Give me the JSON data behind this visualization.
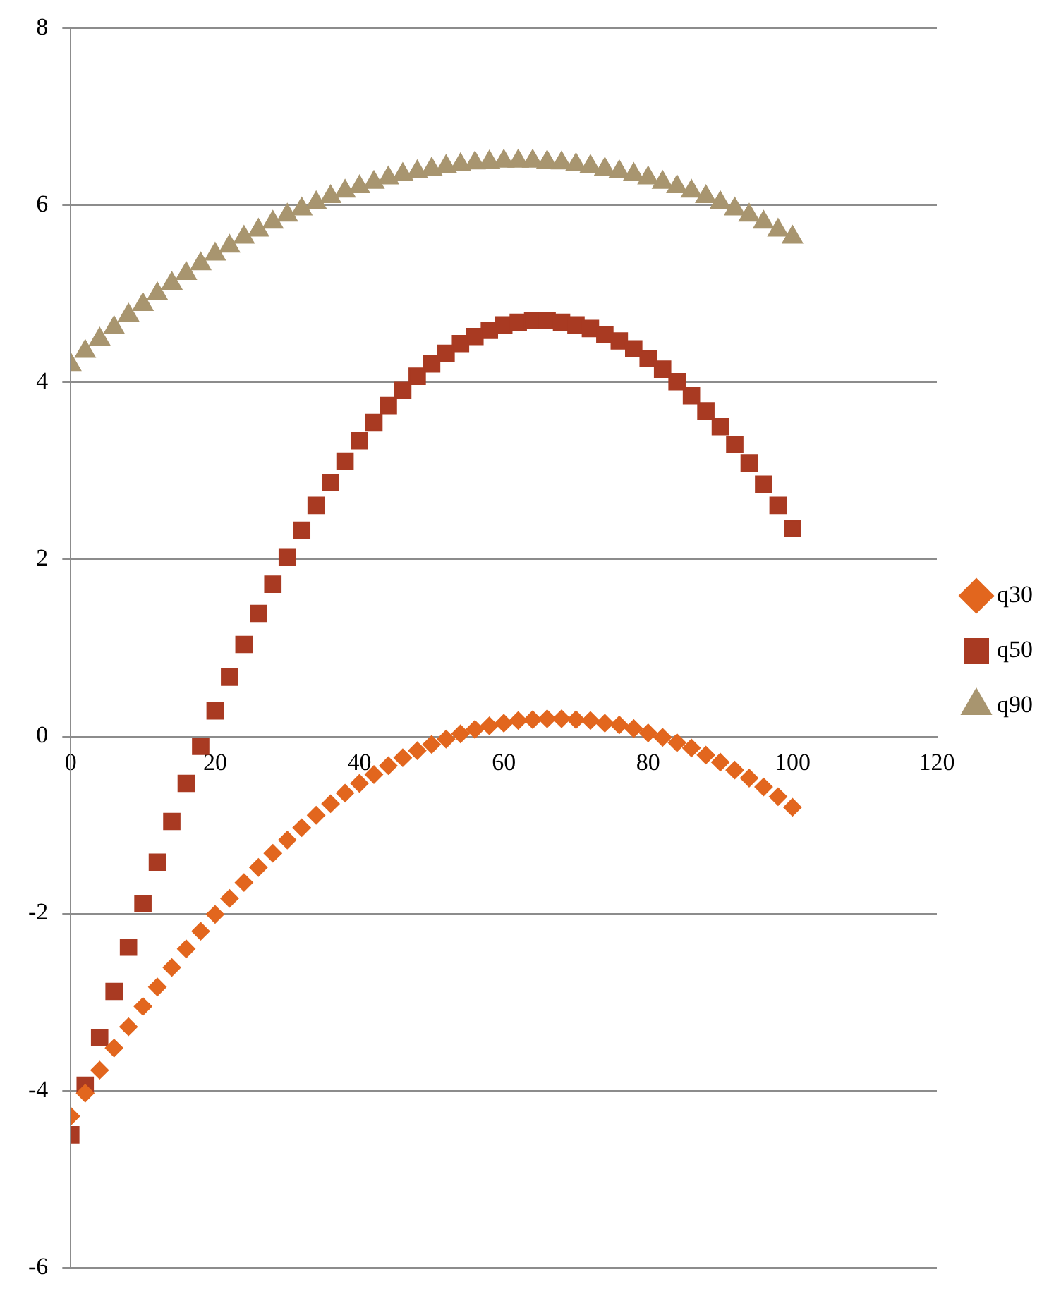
{
  "chart_data": {
    "type": "scatter",
    "x": [
      0,
      2,
      4,
      6,
      8,
      10,
      12,
      14,
      16,
      18,
      20,
      22,
      24,
      26,
      28,
      30,
      32,
      34,
      36,
      38,
      40,
      42,
      44,
      46,
      48,
      50,
      52,
      54,
      56,
      58,
      60,
      62,
      64,
      66,
      68,
      70,
      72,
      74,
      76,
      78,
      80,
      82,
      84,
      86,
      88,
      90,
      92,
      94,
      96,
      98,
      100
    ],
    "series": [
      {
        "name": "q30",
        "color": "#e2661e",
        "marker": "diamond",
        "values": [
          -4.29,
          -4.03,
          -3.77,
          -3.52,
          -3.28,
          -3.05,
          -2.83,
          -2.61,
          -2.4,
          -2.2,
          -2.01,
          -1.83,
          -1.65,
          -1.48,
          -1.32,
          -1.17,
          -1.03,
          -0.89,
          -0.76,
          -0.64,
          -0.53,
          -0.43,
          -0.33,
          -0.24,
          -0.16,
          -0.09,
          -0.03,
          0.03,
          0.08,
          0.12,
          0.15,
          0.18,
          0.19,
          0.2,
          0.2,
          0.19,
          0.18,
          0.15,
          0.13,
          0.09,
          0.04,
          -0.01,
          -0.07,
          -0.13,
          -0.21,
          -0.29,
          -0.38,
          -0.47,
          -0.57,
          -0.68,
          -0.8
        ]
      },
      {
        "name": "q50",
        "color": "#a93a22",
        "marker": "square",
        "values": [
          -4.5,
          -3.94,
          -3.4,
          -2.88,
          -2.38,
          -1.89,
          -1.42,
          -0.96,
          -0.53,
          -0.11,
          0.29,
          0.67,
          1.04,
          1.39,
          1.72,
          2.03,
          2.33,
          2.61,
          2.87,
          3.11,
          3.34,
          3.55,
          3.74,
          3.91,
          4.07,
          4.21,
          4.33,
          4.44,
          4.52,
          4.59,
          4.65,
          4.68,
          4.7,
          4.7,
          4.68,
          4.65,
          4.61,
          4.54,
          4.47,
          4.38,
          4.27,
          4.15,
          4.01,
          3.85,
          3.68,
          3.5,
          3.3,
          3.09,
          2.85,
          2.61,
          2.35
        ]
      },
      {
        "name": "q90",
        "color": "#a8956f",
        "marker": "triangle",
        "values": [
          4.2,
          4.35,
          4.49,
          4.62,
          4.76,
          4.88,
          5.0,
          5.12,
          5.23,
          5.34,
          5.45,
          5.54,
          5.64,
          5.72,
          5.81,
          5.89,
          5.96,
          6.03,
          6.1,
          6.16,
          6.21,
          6.26,
          6.31,
          6.35,
          6.38,
          6.41,
          6.44,
          6.46,
          6.48,
          6.49,
          6.5,
          6.5,
          6.5,
          6.49,
          6.48,
          6.46,
          6.44,
          6.41,
          6.38,
          6.35,
          6.31,
          6.26,
          6.21,
          6.16,
          6.1,
          6.03,
          5.96,
          5.89,
          5.81,
          5.72,
          5.64
        ]
      }
    ],
    "xlim": [
      0,
      120
    ],
    "xticks": [
      0,
      20,
      40,
      60,
      80,
      100,
      120
    ],
    "ylim": [
      -6,
      8
    ],
    "yticks": [
      -6,
      -4,
      -2,
      0,
      2,
      4,
      6,
      8
    ],
    "grid": "y",
    "legend": "right"
  }
}
